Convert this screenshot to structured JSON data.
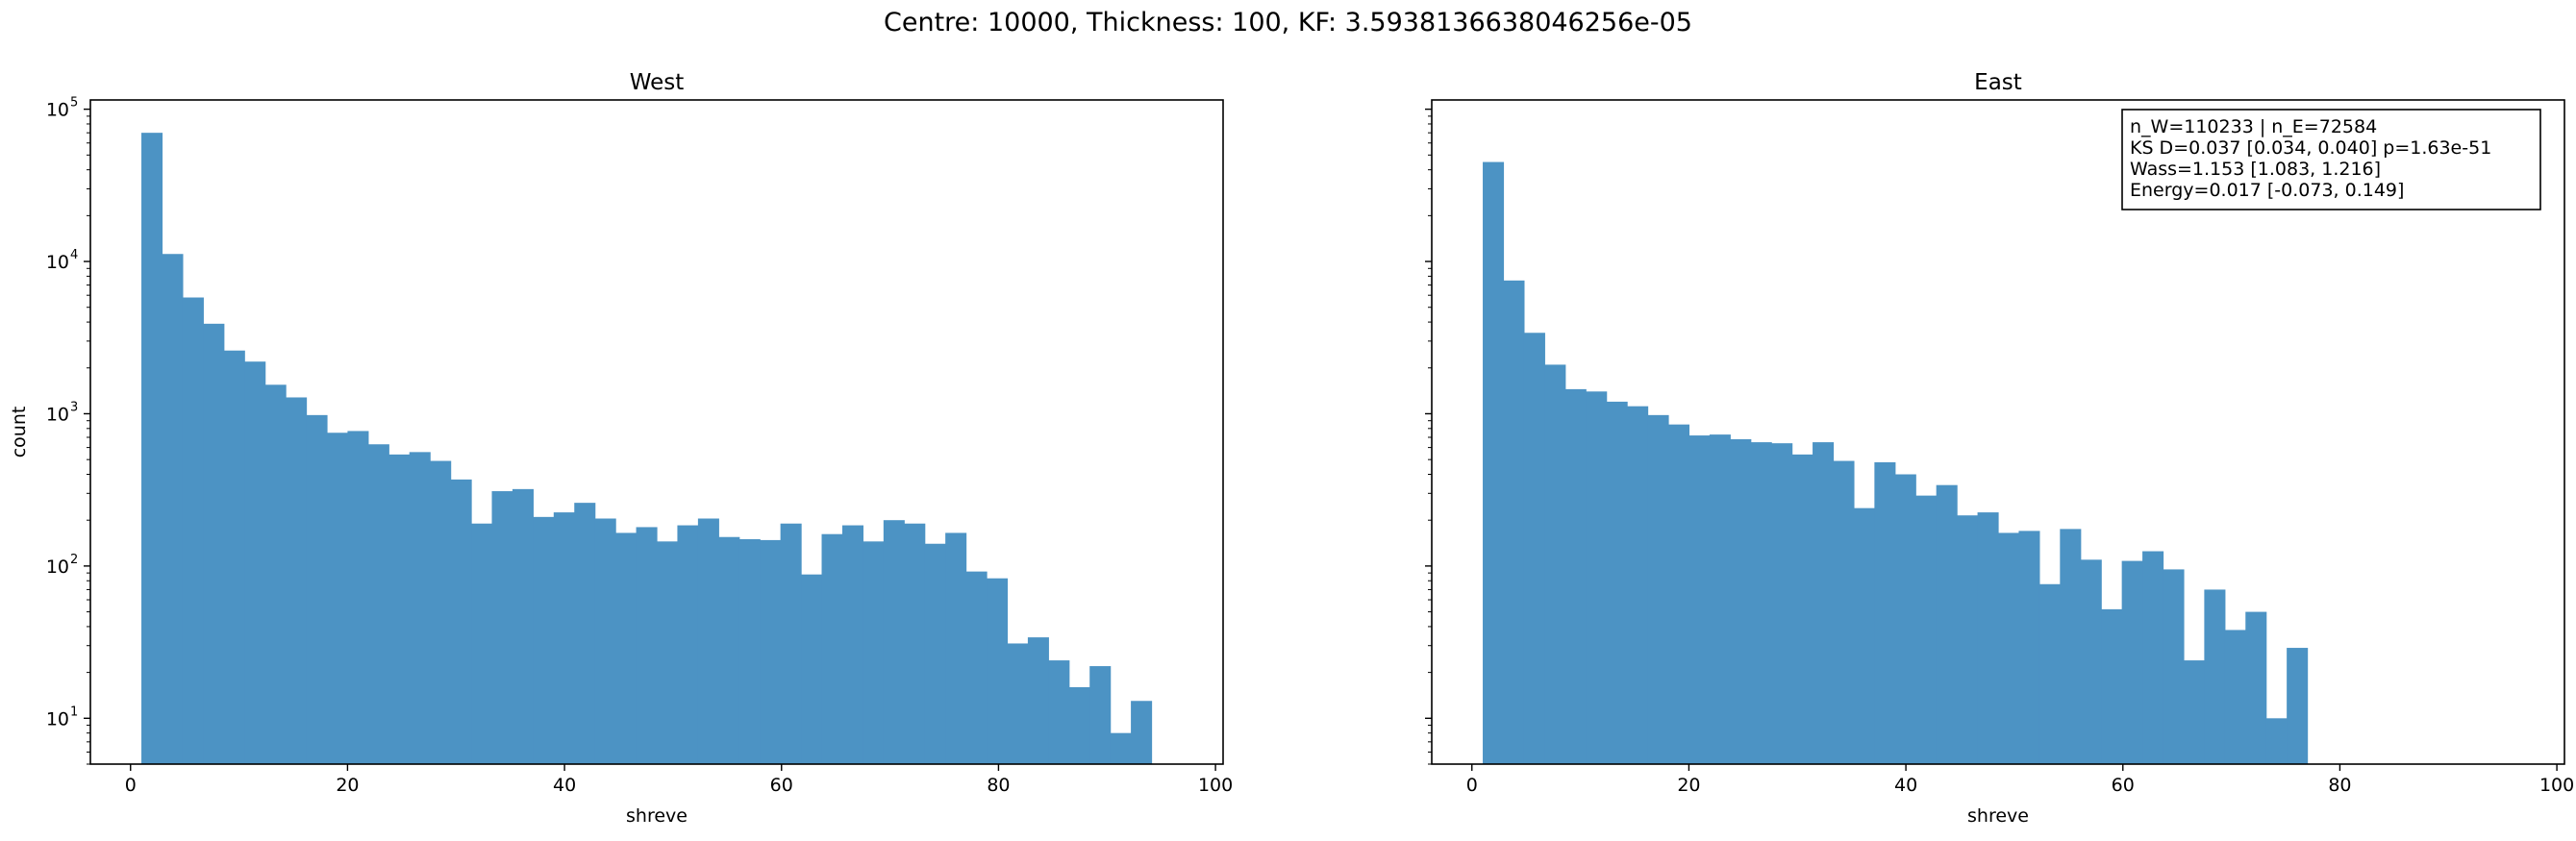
{
  "suptitle": "Centre: 10000, Thickness: 100, KF: 3.5938136638046256e-05",
  "chart_data": [
    {
      "type": "bar",
      "title": "West",
      "xlabel": "shreve",
      "ylabel": "count",
      "yscale": "log",
      "xlim": [
        -3.7,
        100.7
      ],
      "ylim": [
        5,
        115000
      ],
      "xticks": [
        0,
        20,
        40,
        60,
        80,
        100
      ],
      "yticks": [
        10,
        100,
        1000,
        10000,
        100000
      ],
      "ytick_labels": [
        "10",
        "10",
        "10",
        "10",
        "10"
      ],
      "ytick_exponents": [
        "1",
        "2",
        "3",
        "4",
        "5"
      ],
      "bar_color": "#4c93c4",
      "bin_start": 1,
      "bin_width": 1.9,
      "values": [
        70000,
        11200,
        5800,
        3900,
        2600,
        2200,
        1550,
        1280,
        980,
        750,
        770,
        630,
        540,
        560,
        490,
        370,
        190,
        310,
        320,
        210,
        225,
        260,
        205,
        165,
        180,
        145,
        185,
        205,
        155,
        150,
        148,
        190,
        88,
        162,
        185,
        145,
        200,
        190,
        140,
        165,
        92,
        83,
        31,
        34,
        24,
        16,
        22,
        8,
        13
      ]
    },
    {
      "type": "bar",
      "title": "East",
      "xlabel": "shreve",
      "ylabel": "",
      "yscale": "log",
      "xlim": [
        -3.7,
        100.7
      ],
      "ylim": [
        5,
        115000
      ],
      "xticks": [
        0,
        20,
        40,
        60,
        80,
        100
      ],
      "bar_color": "#4c93c4",
      "bin_start": 1,
      "bin_width": 1.9,
      "values": [
        45000,
        7500,
        3400,
        2100,
        1450,
        1400,
        1200,
        1120,
        980,
        850,
        720,
        730,
        680,
        650,
        640,
        540,
        650,
        490,
        240,
        480,
        400,
        290,
        340,
        215,
        225,
        165,
        170,
        76,
        175,
        110,
        52,
        108,
        125,
        95,
        24,
        70,
        38,
        50,
        10,
        29
      ],
      "annotation": [
        "n_W=110233 | n_E=72584",
        "KS D=0.037 [0.034, 0.040]  p=1.63e-51",
        "Wass=1.153 [1.083, 1.216]",
        "Energy=0.017 [-0.073, 0.149]"
      ]
    }
  ]
}
